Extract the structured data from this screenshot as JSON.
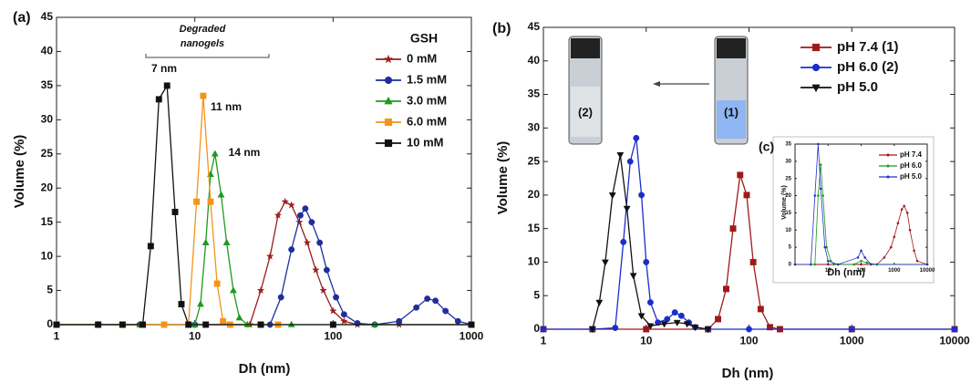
{
  "chart_data": [
    {
      "type": "line",
      "panel_label": "(a)",
      "xlabel": "Dh (nm)",
      "ylabel": "Volume (%)",
      "log_x": true,
      "xlim": [
        1,
        1000
      ],
      "ylim": [
        0,
        45
      ],
      "xticks": [
        1,
        10,
        100,
        1000
      ],
      "yticks": [
        0,
        5,
        10,
        15,
        20,
        25,
        30,
        35,
        40,
        45
      ],
      "legend_title": "GSH",
      "legend": "upper right",
      "annotations": [
        "Degraded",
        "nanogels",
        "7 nm",
        "11 nm",
        "14 nm"
      ],
      "series": [
        {
          "name": "0  mM",
          "color": "#9b1c1c",
          "marker": "star",
          "x": [
            1,
            2,
            4,
            10,
            25,
            30,
            35,
            40,
            45,
            50,
            57,
            65,
            75,
            85,
            100,
            120,
            150,
            300,
            1000
          ],
          "values": [
            0,
            0,
            0,
            0,
            0,
            5,
            10,
            16,
            18,
            17.5,
            15,
            12,
            8,
            5,
            2,
            0.5,
            0,
            0,
            0
          ]
        },
        {
          "name": "1.5 mM",
          "color": "#1f2e9c",
          "marker": "circle",
          "x": [
            1,
            2,
            4,
            10,
            35,
            42,
            50,
            58,
            63,
            70,
            80,
            90,
            105,
            120,
            150,
            200,
            300,
            400,
            480,
            550,
            650,
            800,
            1000
          ],
          "values": [
            0,
            0,
            0,
            0,
            0,
            4,
            11,
            16,
            17,
            15,
            12,
            8,
            4,
            1.5,
            0.2,
            0,
            0.5,
            2.5,
            3.8,
            3.5,
            2,
            0.5,
            0
          ]
        },
        {
          "name": "3.0 mM",
          "color": "#1e9a1e",
          "marker": "triangle",
          "x": [
            1,
            2,
            4,
            10,
            11,
            12,
            13,
            14,
            15.5,
            17,
            19,
            21,
            24,
            50,
            200,
            1000
          ],
          "values": [
            0,
            0,
            0,
            0,
            3,
            12,
            22,
            25,
            19,
            12,
            5,
            1,
            0,
            0,
            0,
            0
          ]
        },
        {
          "name": "6.0 mM",
          "color": "#f39419",
          "marker": "square",
          "x": [
            1,
            3,
            6,
            9,
            10.3,
            11.5,
            13,
            14.5,
            16,
            18,
            40
          ],
          "values": [
            0,
            0,
            0,
            0,
            18,
            33.5,
            18,
            6,
            0.5,
            0,
            0
          ]
        },
        {
          "name": "10  mM",
          "color": "#111111",
          "marker": "square",
          "x": [
            1,
            2,
            3,
            4.2,
            4.8,
            5.5,
            6.3,
            7.2,
            8,
            9,
            12,
            30,
            100,
            1000
          ],
          "values": [
            0,
            0,
            0,
            0,
            11.5,
            33,
            35,
            16.5,
            3,
            0,
            0,
            0,
            0,
            0
          ]
        }
      ]
    },
    {
      "type": "line",
      "panel_label": "(b)",
      "xlabel": "Dh (nm)",
      "ylabel": "Volume (%)",
      "log_x": true,
      "xlim": [
        1,
        10000
      ],
      "ylim": [
        0,
        45
      ],
      "xticks": [
        1,
        10,
        100,
        1000,
        10000
      ],
      "yticks": [
        0,
        5,
        10,
        15,
        20,
        25,
        30,
        35,
        40,
        45
      ],
      "legend": "upper right",
      "annotations": [
        "(2)",
        "(1)"
      ],
      "series": [
        {
          "name": "pH 7.4 (1)",
          "color": "#a01818",
          "marker": "square",
          "x": [
            1,
            3,
            10,
            40,
            50,
            60,
            70,
            82,
            95,
            110,
            130,
            160,
            200,
            1000,
            10000
          ],
          "values": [
            0,
            0,
            0,
            0,
            1.5,
            6,
            15,
            23,
            20,
            10,
            3,
            0.3,
            0,
            0,
            0
          ]
        },
        {
          "name": "pH 6.0 (2)",
          "color": "#1a2fc9",
          "marker": "circle",
          "x": [
            1,
            3,
            5,
            6,
            7,
            8,
            9,
            10,
            11,
            13,
            16,
            19,
            22,
            26,
            30,
            40,
            100,
            1000,
            10000
          ],
          "values": [
            0,
            0,
            0.2,
            13,
            25,
            28.5,
            20,
            10,
            4,
            1,
            1.5,
            2.5,
            2,
            1,
            0.3,
            0,
            0,
            0,
            0
          ]
        },
        {
          "name": "pH 5.0",
          "color": "#111111",
          "marker": "triangle-down",
          "x": [
            3,
            3.5,
            4,
            4.7,
            5.6,
            6.5,
            7.5,
            9,
            11,
            15,
            20,
            25,
            30,
            40
          ],
          "values": [
            0,
            4,
            10,
            20,
            26,
            18,
            8,
            2,
            0.5,
            0.8,
            1,
            0.8,
            0.3,
            0
          ]
        }
      ]
    },
    {
      "type": "line",
      "panel_label": "(c)",
      "xlabel": "Dh (nm)",
      "ylabel": "Volume (%)",
      "log_x": true,
      "xlim": [
        1,
        10000
      ],
      "ylim": [
        0,
        35
      ],
      "xticks": [
        10,
        100,
        1000,
        10000
      ],
      "yticks": [
        0,
        5,
        10,
        15,
        20,
        25,
        30,
        35
      ],
      "legend": "upper right",
      "series": [
        {
          "name": "pH 7.4",
          "color": "#a01818",
          "marker": "dot",
          "x": [
            1,
            10,
            100,
            300,
            500,
            800,
            1000,
            1300,
            1700,
            2000,
            2500,
            3000,
            4000,
            5000,
            10000
          ],
          "values": [
            0,
            0,
            0,
            0,
            2,
            5,
            8,
            12,
            16,
            17,
            15,
            10,
            4,
            1,
            0
          ]
        },
        {
          "name": "pH 6.0",
          "color": "#1e9a1e",
          "marker": "dot",
          "x": [
            1,
            4,
            5,
            6,
            7,
            9,
            12,
            15,
            60,
            100,
            150,
            300,
            10000
          ],
          "values": [
            0,
            0,
            20,
            29,
            20,
            5,
            1,
            0,
            0,
            1,
            0.5,
            0,
            0
          ]
        },
        {
          "name": "pH 5.0",
          "color": "#2430c8",
          "marker": "dot",
          "x": [
            1,
            3,
            4,
            5,
            6,
            8,
            10,
            20,
            80,
            100,
            130,
            200,
            10000
          ],
          "values": [
            0,
            0,
            20,
            35,
            22,
            5,
            1,
            0,
            2,
            4,
            2,
            0,
            0
          ]
        }
      ]
    }
  ]
}
